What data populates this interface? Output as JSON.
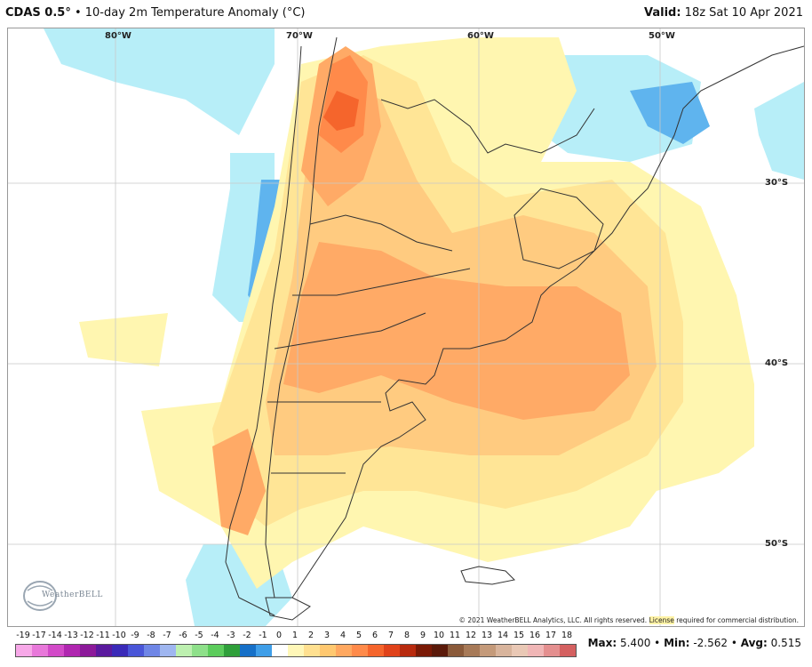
{
  "header": {
    "model": "CDAS 0.5",
    "degree": "°",
    "bullet": "•",
    "product": "10-day 2m Temperature Anomaly (°C)",
    "valid_label": "Valid:",
    "valid_time": "18z Sat 10 Apr 2021"
  },
  "map": {
    "longitude_labels": [
      "80°W",
      "70°W",
      "60°W",
      "50°W"
    ],
    "latitude_labels": [
      "30°S",
      "40°S",
      "50°S"
    ],
    "copyright": "© 2021 WeatherBELL Analytics, LLC. All rights reserved.",
    "license_text": "License",
    "license_tail": "required for commercial distribution.",
    "logo_text": "WeatherBELL"
  },
  "colorbar": {
    "ticks": [
      "-19",
      "-17",
      "-14",
      "-13",
      "-12",
      "-11",
      "-10",
      "-9",
      "-8",
      "-7",
      "-6",
      "-5",
      "-4",
      "-3",
      "-2",
      "-1",
      "0",
      "1",
      "2",
      "3",
      "4",
      "5",
      "6",
      "7",
      "8",
      "9",
      "10",
      "11",
      "12",
      "13",
      "14",
      "15",
      "16",
      "17",
      "18"
    ],
    "colors": [
      "#f7a8e8",
      "#e878da",
      "#d24ac8",
      "#b026b0",
      "#8c1a9a",
      "#5a1a9e",
      "#3a2ab8",
      "#4a56d8",
      "#6f86e6",
      "#9fb6f0",
      "#bdf0b0",
      "#8ee08a",
      "#5ccc5c",
      "#2f9f3a",
      "#1670c8",
      "#3f9ee8",
      "#ffffff",
      "#fff7b8",
      "#ffe090",
      "#ffc870",
      "#ffa860",
      "#ff8a4a",
      "#f5652c",
      "#e0421a",
      "#b82a0e",
      "#7a1a06",
      "#5a1a0a",
      "#8a5a3a",
      "#a77a58",
      "#c49a7a",
      "#d8b49c",
      "#e9c8b5",
      "#f0b6b6",
      "#e48f8f",
      "#d46060"
    ]
  },
  "stats": {
    "max_label": "Max:",
    "max_value": "5.400",
    "min_label": "Min:",
    "min_value": "-2.562",
    "avg_label": "Avg:",
    "avg_value": "0.515",
    "sep": "•"
  },
  "palette": {
    "ocean_bg": "#ffffff",
    "light_yellow": "#fff6b0",
    "yellow": "#ffe596",
    "light_orange": "#ffcb80",
    "orange": "#ffaa66",
    "dark_orange": "#ff8a4a",
    "red_orange": "#f5652c",
    "light_blue": "#b7eef8",
    "blue": "#5fb4ee",
    "border_line": "#333333"
  }
}
